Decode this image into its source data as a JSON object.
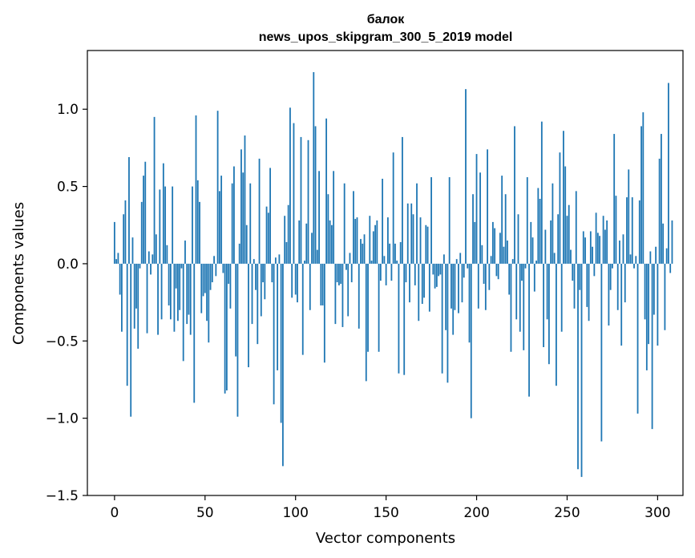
{
  "chart_data": {
    "type": "bar",
    "title": "балок",
    "subtitle": "news_upos_skipgram_300_5_2019 model",
    "xlabel": "Vector components",
    "ylabel": "Components values",
    "xlim": [
      -15,
      314
    ],
    "ylim": [
      -1.5,
      1.38
    ],
    "xticks": [
      0,
      50,
      100,
      150,
      200,
      250,
      300
    ],
    "xtick_labels": [
      "0",
      "50",
      "100",
      "150",
      "200",
      "250",
      "300"
    ],
    "yticks": [
      -1.5,
      -1.0,
      -0.5,
      0.0,
      0.5,
      1.0
    ],
    "ytick_labels": [
      "−1.5",
      "−1.0",
      "−0.5",
      "0.0",
      "0.5",
      "1.0"
    ],
    "bar_color": "#1f77b4",
    "grid": false,
    "values": [
      0.27,
      0.03,
      0.07,
      -0.2,
      -0.44,
      0.32,
      0.41,
      -0.79,
      0.69,
      -0.99,
      0.17,
      -0.42,
      -0.29,
      -0.55,
      -0.03,
      0.4,
      0.57,
      0.66,
      -0.45,
      0.08,
      -0.07,
      0.06,
      0.95,
      0.19,
      -0.46,
      0.48,
      -0.36,
      0.65,
      0.5,
      0.12,
      -0.27,
      -0.36,
      0.5,
      -0.44,
      -0.16,
      -0.37,
      -0.3,
      -0.03,
      -0.63,
      0.15,
      -0.39,
      -0.33,
      -0.46,
      0.5,
      -0.9,
      0.96,
      0.54,
      0.4,
      -0.32,
      -0.21,
      -0.19,
      -0.37,
      -0.51,
      -0.17,
      -0.12,
      0.05,
      -0.08,
      0.99,
      0.47,
      0.57,
      -0.06,
      -0.84,
      -0.82,
      -0.13,
      -0.29,
      0.52,
      0.63,
      -0.6,
      -0.99,
      0.13,
      0.74,
      0.59,
      0.83,
      0.25,
      -0.67,
      0.52,
      -0.39,
      0.03,
      -0.17,
      -0.52,
      0.68,
      -0.34,
      -0.12,
      -0.23,
      0.37,
      0.33,
      0.62,
      -0.12,
      -0.91,
      0.04,
      -0.69,
      0.06,
      -1.03,
      -1.31,
      0.31,
      0.14,
      0.38,
      1.01,
      -0.22,
      0.91,
      -0.2,
      -0.25,
      0.28,
      0.82,
      -0.59,
      0.02,
      0.26,
      0.8,
      -0.3,
      0.2,
      1.24,
      0.89,
      0.09,
      0.6,
      -0.27,
      -0.27,
      -0.64,
      0.94,
      0.45,
      0.28,
      0.25,
      0.6,
      -0.39,
      -0.12,
      -0.14,
      -0.13,
      -0.41,
      0.52,
      -0.04,
      -0.34,
      0.07,
      -0.12,
      0.47,
      0.29,
      0.3,
      -0.42,
      0.16,
      0.13,
      0.19,
      -0.76,
      -0.57,
      0.31,
      0.02,
      0.21,
      0.25,
      0.28,
      -0.57,
      -0.11,
      0.55,
      0.05,
      -0.14,
      0.3,
      0.13,
      -0.11,
      0.72,
      0.13,
      0.02,
      -0.71,
      0.14,
      0.82,
      -0.72,
      -0.12,
      0.39,
      -0.25,
      0.39,
      0.32,
      -0.14,
      0.52,
      -0.37,
      0.3,
      -0.26,
      -0.22,
      0.25,
      0.24,
      -0.31,
      0.56,
      -0.07,
      -0.16,
      -0.15,
      -0.08,
      -0.07,
      -0.71,
      0.06,
      -0.43,
      -0.77,
      0.56,
      -0.29,
      -0.46,
      -0.3,
      0.03,
      -0.32,
      0.07,
      -0.25,
      -0.09,
      1.13,
      -0.03,
      -0.51,
      -1.0,
      0.45,
      0.27,
      0.71,
      -0.29,
      0.59,
      0.12,
      -0.13,
      -0.3,
      0.74,
      -0.17,
      0.05,
      0.27,
      0.23,
      -0.08,
      -0.1,
      0.2,
      0.57,
      0.11,
      0.45,
      0.15,
      -0.2,
      -0.57,
      0.03,
      0.89,
      -0.36,
      0.32,
      -0.44,
      -0.11,
      -0.56,
      -0.03,
      0.56,
      -0.86,
      0.27,
      0.17,
      -0.18,
      0.02,
      0.49,
      0.42,
      0.92,
      -0.54,
      0.22,
      -0.36,
      -0.65,
      0.28,
      0.52,
      0.07,
      -0.79,
      0.32,
      0.72,
      -0.44,
      0.86,
      0.63,
      0.31,
      0.38,
      0.09,
      -0.11,
      -0.29,
      0.47,
      -1.33,
      -0.17,
      -1.38,
      0.21,
      0.17,
      -0.28,
      -0.37,
      0.21,
      0.11,
      -0.08,
      0.33,
      0.2,
      0.18,
      -1.15,
      0.31,
      0.22,
      0.28,
      -0.4,
      -0.17,
      -0.03,
      0.84,
      0.44,
      -0.3,
      0.15,
      -0.53,
      0.19,
      -0.25,
      0.43,
      0.61,
      0.06,
      0.43,
      -0.03,
      0.05,
      -0.97,
      0.41,
      0.89,
      0.98,
      -0.36,
      -0.69,
      -0.52,
      0.08,
      -1.07,
      -0.33,
      0.11,
      -0.53,
      0.68,
      0.84,
      0.26,
      -0.43,
      0.1,
      1.17,
      -0.06,
      0.28
    ]
  }
}
